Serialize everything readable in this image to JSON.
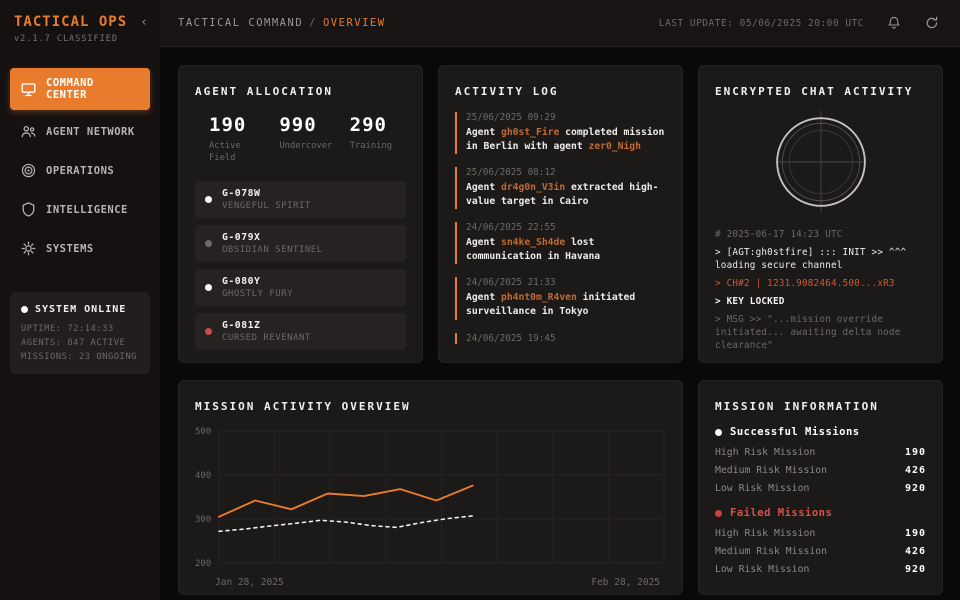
{
  "colors": {
    "accent": "#e87b2c",
    "accent_dim": "#c06a33",
    "chat_orange": "#cf5a2e",
    "red": "#d2524e",
    "white": "#ffffff",
    "gray_dot": "#6f6a6a",
    "panel_bg": "#1c1919",
    "sidebar_bg": "#151111"
  },
  "sidebar": {
    "title": "TACTICAL OPS",
    "subtitle": "v2.1.7 CLASSIFIED",
    "collapse_icon": "‹",
    "items": [
      {
        "label": "COMMAND CENTER",
        "icon": "monitor-icon",
        "active": true
      },
      {
        "label": "AGENT NETWORK",
        "icon": "agents-icon",
        "active": false
      },
      {
        "label": "OPERATIONS",
        "icon": "target-icon",
        "active": false
      },
      {
        "label": "INTELLIGENCE",
        "icon": "shield-icon",
        "active": false
      },
      {
        "label": "SYSTEMS",
        "icon": "gear-icon",
        "active": false
      }
    ],
    "status": {
      "title": "SYSTEM ONLINE",
      "lines": [
        "UPTIME: 72:14:33",
        "AGENTS: 847 ACTIVE",
        "MISSIONS: 23 ONGOING"
      ]
    }
  },
  "topbar": {
    "breadcrumb_root": "TACTICAL COMMAND",
    "breadcrumb_sep": "/",
    "breadcrumb_current": "OVERVIEW",
    "last_update": "LAST UPDATE: 05/06/2025 20:00 UTC"
  },
  "agent_allocation": {
    "title": "AGENT ALLOCATION",
    "stats": [
      {
        "value": "190",
        "label": "Active Field"
      },
      {
        "value": "990",
        "label": "Undercover"
      },
      {
        "value": "290",
        "label": "Training"
      }
    ],
    "agents": [
      {
        "code": "G-078W",
        "name": "VENGEFUL SPIRIT",
        "dot_color": "#ffffff"
      },
      {
        "code": "G-079X",
        "name": "OBSIDIAN SENTINEL",
        "dot_color": "#6f6a6a"
      },
      {
        "code": "G-080Y",
        "name": "GHOSTLY FURY",
        "dot_color": "#ffffff"
      },
      {
        "code": "G-081Z",
        "name": "CURSED REVENANT",
        "dot_color": "#cf4b48"
      }
    ]
  },
  "activity_log": {
    "title": "ACTIVITY LOG",
    "entries": [
      {
        "time": "25/06/2025 09:29",
        "segments": [
          {
            "text": "Agent "
          },
          {
            "text": "gh0st_Fire",
            "hl": true
          },
          {
            "text": " completed mission in Berlin with agent "
          },
          {
            "text": "zer0_Nigh",
            "hl": true
          }
        ]
      },
      {
        "time": "25/06/2025 08:12",
        "segments": [
          {
            "text": "Agent "
          },
          {
            "text": "dr4g0n_V3in",
            "hl": true
          },
          {
            "text": " extracted high-value target in Cairo"
          }
        ]
      },
      {
        "time": "24/06/2025 22:55",
        "segments": [
          {
            "text": "Agent "
          },
          {
            "text": "sn4ke_Sh4de",
            "hl": true
          },
          {
            "text": " lost communication in Havana"
          }
        ]
      },
      {
        "time": "24/06/2025 21:33",
        "segments": [
          {
            "text": "Agent "
          },
          {
            "text": "ph4nt0m_R4ven",
            "hl": true
          },
          {
            "text": " initiated surveillance in Tokyo"
          }
        ]
      },
      {
        "time": "24/06/2025 19:45",
        "segments": []
      }
    ]
  },
  "encrypted_chat": {
    "title": "ENCRYPTED CHAT ACTIVITY",
    "terminal": [
      {
        "text": "# 2025-06-17 14:23 UTC",
        "style": "dim"
      },
      {
        "text": "> [AGT:gh0stfire] ::: INIT >> ^^^ loading secure channel",
        "style": "white"
      },
      {
        "text": "> CH#2 | 1231.9082464.500...xR3",
        "style": "orange"
      },
      {
        "text": "> KEY LOCKED",
        "style": "bold"
      },
      {
        "text": "> MSG >> \"...mission override initiated... awaiting delta node clearance\"",
        "style": "dim"
      }
    ]
  },
  "chart_data": {
    "type": "line",
    "title": "MISSION ACTIVITY OVERVIEW",
    "xlabel": "",
    "ylabel": "",
    "x_start_label": "Jan 28, 2025",
    "x_end_label": "Feb 28, 2025",
    "ylim": [
      200,
      500
    ],
    "yticks": [
      200,
      300,
      400,
      500
    ],
    "grid": true,
    "grid_columns": 8,
    "data_extent_fraction": 0.57,
    "legend_position": "none",
    "series": [
      {
        "name": "primary-missions",
        "style": "solid",
        "color": "#e87b2c",
        "values": [
          305,
          342,
          322,
          358,
          352,
          368,
          342,
          376
        ]
      },
      {
        "name": "baseline-missions",
        "style": "dashed",
        "color": "#f0eeec",
        "values": [
          272,
          277,
          284,
          290,
          297,
          293,
          285,
          281,
          292,
          301,
          307
        ]
      }
    ]
  },
  "mission_info": {
    "title": "MISSION INFORMATION",
    "sections": [
      {
        "label": "Successful Missions",
        "color": "#ffffff",
        "rows": [
          {
            "label": "High Risk Mission",
            "value": "190"
          },
          {
            "label": "Medium Risk Mission",
            "value": "426"
          },
          {
            "label": "Low Risk Mission",
            "value": "920"
          }
        ]
      },
      {
        "label": "Failed Missions",
        "color": "#d2524e",
        "rows": [
          {
            "label": "High Risk Mission",
            "value": "190"
          },
          {
            "label": "Medium Risk Mission",
            "value": "426"
          },
          {
            "label": "Low Risk Mission",
            "value": "920"
          }
        ]
      }
    ]
  }
}
